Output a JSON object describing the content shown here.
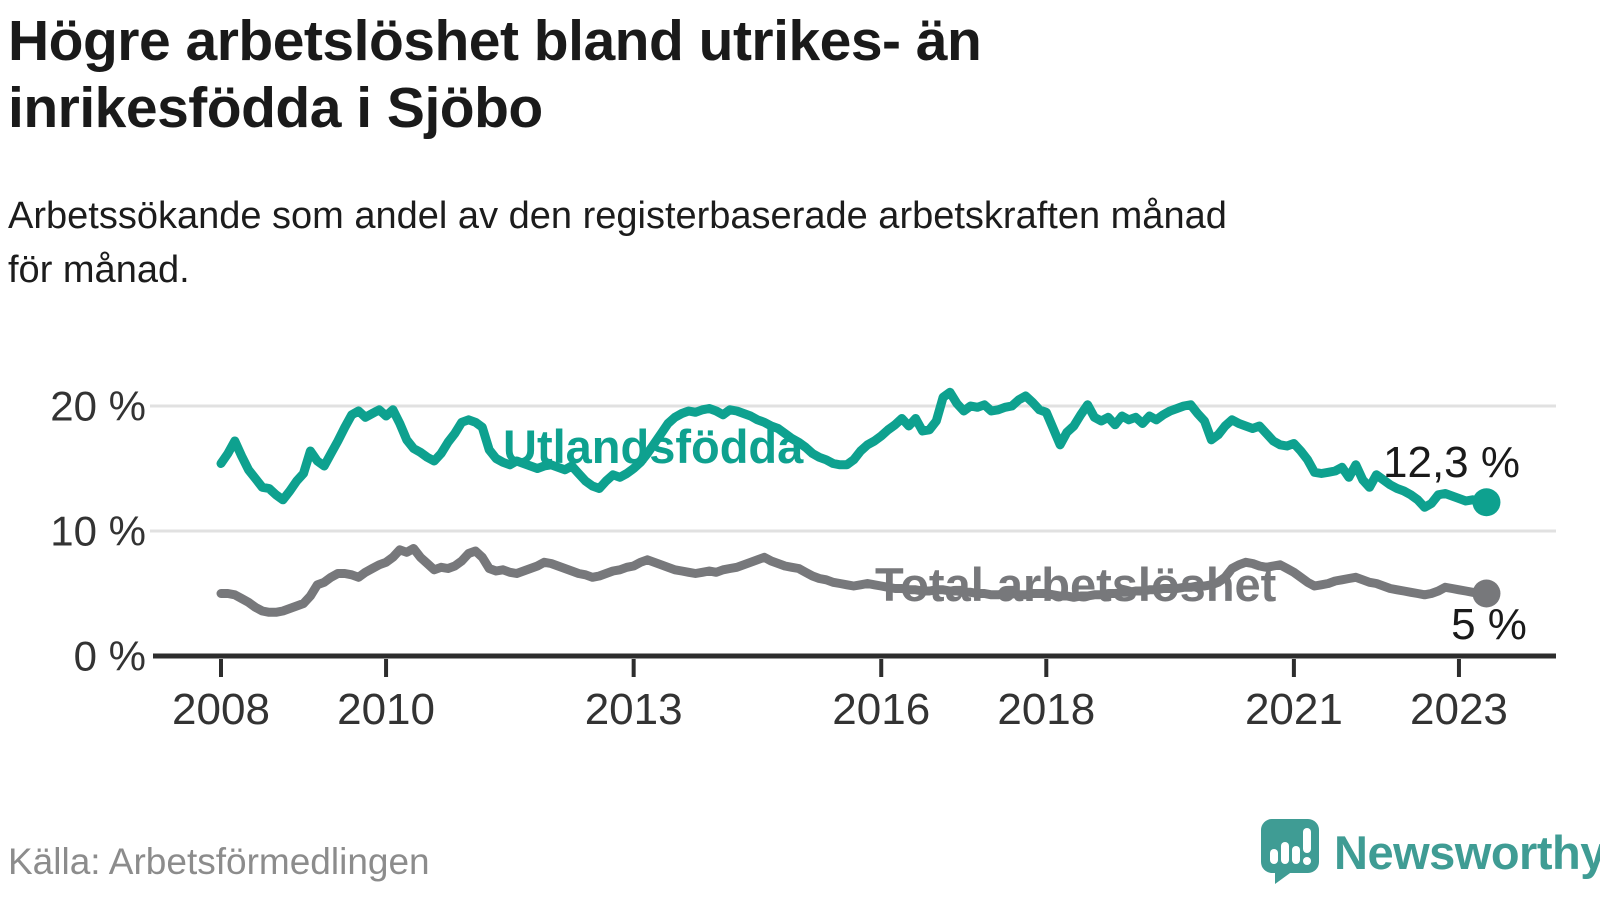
{
  "header": {
    "title_lines": [
      "Högre arbetslöshet bland utrikes- än",
      "inrikesfödda i Sjöbo"
    ],
    "subtitle_lines": [
      "Arbetssökande som andel av den registerbaserade arbetskraften månad",
      "för månad."
    ]
  },
  "chart_data": {
    "type": "line",
    "title": "Högre arbetslöshet bland utrikes- än inrikesfödda i Sjöbo",
    "subtitle": "Arbetssökande som andel av den registerbaserade arbetskraften månad för månad.",
    "x_unit": "month",
    "x_start": "2008-01",
    "x_end": "2023-05",
    "x_tick_years": [
      2008,
      2010,
      2013,
      2016,
      2018,
      2021,
      2023
    ],
    "x_tick_labels": [
      "2008",
      "2010",
      "2013",
      "2016",
      "2018",
      "2021",
      "2023"
    ],
    "y_ticks": [
      0,
      10,
      20
    ],
    "y_tick_labels": [
      "0 %",
      "10 %",
      "20 %"
    ],
    "ylim": [
      0,
      22
    ],
    "grid": "horizontal",
    "legend_position": "inline-labels",
    "series": [
      {
        "name": "Utlandsfödda",
        "color": "#0ea18f",
        "end_label": "12,3 %",
        "end_value": 12.3,
        "values": [
          15.4,
          16.2,
          17.2,
          16.0,
          14.9,
          14.2,
          13.5,
          13.4,
          12.9,
          12.5,
          13.2,
          14.0,
          14.6,
          16.4,
          15.6,
          15.2,
          16.2,
          17.2,
          18.3,
          19.3,
          19.6,
          19.1,
          19.4,
          19.7,
          19.2,
          19.7,
          18.6,
          17.3,
          16.6,
          16.3,
          15.9,
          15.6,
          16.2,
          17.1,
          17.8,
          18.7,
          18.9,
          18.7,
          18.3,
          16.5,
          15.8,
          15.5,
          15.3,
          15.6,
          15.4,
          15.2,
          15.0,
          15.2,
          15.3,
          15.1,
          14.9,
          15.2,
          14.6,
          14.0,
          13.6,
          13.4,
          14.0,
          14.5,
          14.3,
          14.6,
          15.0,
          15.5,
          16.2,
          17.0,
          17.8,
          18.6,
          19.1,
          19.4,
          19.6,
          19.5,
          19.7,
          19.8,
          19.6,
          19.3,
          19.7,
          19.6,
          19.4,
          19.2,
          18.9,
          18.7,
          18.4,
          18.2,
          17.8,
          17.4,
          17.1,
          16.7,
          16.2,
          15.9,
          15.7,
          15.4,
          15.3,
          15.3,
          15.7,
          16.4,
          16.9,
          17.2,
          17.6,
          18.1,
          18.5,
          19.0,
          18.4,
          19.0,
          18.0,
          18.1,
          18.8,
          20.7,
          21.1,
          20.2,
          19.6,
          20.0,
          19.9,
          20.1,
          19.6,
          19.7,
          19.9,
          20.0,
          20.5,
          20.8,
          20.3,
          19.7,
          19.5,
          18.2,
          16.9,
          17.9,
          18.4,
          19.3,
          20.1,
          19.1,
          18.8,
          19.1,
          18.5,
          19.2,
          18.9,
          19.1,
          18.6,
          19.2,
          18.9,
          19.3,
          19.6,
          19.8,
          20.0,
          20.1,
          19.4,
          18.8,
          17.3,
          17.7,
          18.4,
          18.9,
          18.6,
          18.4,
          18.2,
          18.4,
          17.8,
          17.2,
          16.9,
          16.8,
          17.0,
          16.4,
          15.7,
          14.7,
          14.6,
          14.7,
          14.8,
          15.1,
          14.3,
          15.3,
          14.1,
          13.5,
          14.5,
          14.1,
          13.7,
          13.4,
          13.2,
          12.9,
          12.5,
          11.9,
          12.2,
          12.9,
          13.0,
          12.8,
          12.6,
          12.4,
          12.5,
          12.4,
          12.3
        ]
      },
      {
        "name": "Total arbetslöshet",
        "color": "#77787b",
        "end_label": "5 %",
        "end_value": 5.0,
        "values": [
          5.0,
          5.0,
          4.9,
          4.6,
          4.3,
          3.9,
          3.6,
          3.5,
          3.5,
          3.6,
          3.8,
          4.0,
          4.2,
          4.8,
          5.7,
          5.9,
          6.3,
          6.6,
          6.6,
          6.5,
          6.3,
          6.7,
          7.0,
          7.3,
          7.5,
          7.9,
          8.5,
          8.3,
          8.6,
          7.9,
          7.4,
          6.9,
          7.1,
          7.0,
          7.2,
          7.6,
          8.2,
          8.4,
          7.9,
          7.0,
          6.8,
          6.9,
          6.7,
          6.6,
          6.8,
          7.0,
          7.2,
          7.5,
          7.4,
          7.2,
          7.0,
          6.8,
          6.6,
          6.5,
          6.3,
          6.4,
          6.6,
          6.8,
          6.9,
          7.1,
          7.2,
          7.5,
          7.7,
          7.5,
          7.3,
          7.1,
          6.9,
          6.8,
          6.7,
          6.6,
          6.7,
          6.8,
          6.7,
          6.9,
          7.0,
          7.1,
          7.3,
          7.5,
          7.7,
          7.9,
          7.6,
          7.4,
          7.2,
          7.1,
          7.0,
          6.7,
          6.4,
          6.2,
          6.1,
          5.9,
          5.8,
          5.7,
          5.6,
          5.7,
          5.8,
          5.7,
          5.6,
          5.5,
          5.4,
          5.4,
          5.3,
          5.3,
          5.2,
          5.2,
          5.3,
          5.3,
          5.2,
          5.2,
          5.1,
          5.1,
          5.0,
          5.0,
          4.9,
          4.9,
          5.0,
          5.0,
          4.9,
          4.9,
          5.0,
          5.0,
          5.0,
          4.9,
          4.8,
          4.8,
          4.7,
          4.8,
          4.8,
          4.9,
          4.9,
          5.0,
          5.0,
          5.1,
          5.1,
          5.2,
          5.2,
          5.3,
          5.3,
          5.4,
          5.4,
          5.4,
          5.5,
          5.5,
          5.6,
          5.6,
          5.7,
          5.9,
          6.3,
          7.0,
          7.3,
          7.5,
          7.4,
          7.2,
          7.1,
          7.2,
          7.3,
          7.0,
          6.7,
          6.3,
          5.9,
          5.6,
          5.7,
          5.8,
          6.0,
          6.1,
          6.2,
          6.3,
          6.1,
          5.9,
          5.8,
          5.6,
          5.4,
          5.3,
          5.2,
          5.1,
          5.0,
          4.9,
          5.0,
          5.2,
          5.5,
          5.4,
          5.3,
          5.2,
          5.1,
          5.0,
          5.0
        ]
      }
    ]
  },
  "colors": {
    "grid": "#e1e1e1",
    "axis": "#2d2d2d",
    "axis_text": "#333333",
    "end_label_text": "#1a1a1a",
    "brand_teal": "#3f9c94"
  },
  "footer": {
    "source": "Källa: Arbetsförmedlingen",
    "brand": "Newsworthy"
  }
}
